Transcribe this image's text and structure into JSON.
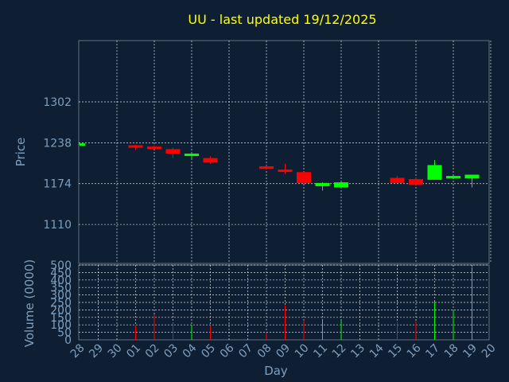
{
  "chart_data": {
    "type": "candlestick",
    "title": "UU - last updated 19/12/2025",
    "price_panel": {
      "ylabel": "Price",
      "yticks": [
        1110,
        1174,
        1238,
        1302
      ],
      "ylim": [
        1049,
        1398
      ]
    },
    "volume_panel": {
      "ylabel": "Volume (0000)",
      "yticks": [
        0,
        50,
        100,
        150,
        200,
        250,
        300,
        350,
        400,
        450,
        500
      ],
      "ylim": [
        0,
        500
      ]
    },
    "xlabel": "Day",
    "x_labels": [
      "28",
      "29",
      "30",
      "01",
      "02",
      "03",
      "04",
      "05",
      "06",
      "07",
      "08",
      "09",
      "10",
      "11",
      "12",
      "13",
      "14",
      "15",
      "16",
      "17",
      "18",
      "19",
      "20"
    ],
    "candles": [
      {
        "day": "28",
        "open": 1236,
        "high": 1237,
        "low": 1235,
        "close": 1237,
        "volume": 0
      },
      {
        "day": "01",
        "open": 1234,
        "high": 1235,
        "low": 1227,
        "close": 1232,
        "volume": 95
      },
      {
        "day": "02",
        "open": 1232,
        "high": 1234,
        "low": 1229,
        "close": 1229,
        "volume": 170
      },
      {
        "day": "03",
        "open": 1228,
        "high": 1230,
        "low": 1214,
        "close": 1221,
        "volume": 115
      },
      {
        "day": "04",
        "open": 1218,
        "high": 1222,
        "low": 1213,
        "close": 1221,
        "volume": 100
      },
      {
        "day": "05",
        "open": 1214,
        "high": 1217,
        "low": 1205,
        "close": 1207,
        "volume": 95
      },
      {
        "day": "08",
        "open": 1201,
        "high": 1202,
        "low": 1196,
        "close": 1197,
        "volume": 50
      },
      {
        "day": "09",
        "open": 1196,
        "high": 1205,
        "low": 1189,
        "close": 1195,
        "volume": 230
      },
      {
        "day": "10",
        "open": 1192,
        "high": 1192,
        "low": 1174,
        "close": 1175,
        "volume": 130
      },
      {
        "day": "11",
        "open": 1170,
        "high": 1176,
        "low": 1163,
        "close": 1175,
        "volume": 140
      },
      {
        "day": "12",
        "open": 1168,
        "high": 1177,
        "low": 1168,
        "close": 1176,
        "volume": 130
      },
      {
        "day": "15",
        "open": 1183,
        "high": 1186,
        "low": 1175,
        "close": 1175,
        "volume": 120
      },
      {
        "day": "16",
        "open": 1181,
        "high": 1183,
        "low": 1172,
        "close": 1172,
        "volume": 125
      },
      {
        "day": "17",
        "open": 1180,
        "high": 1211,
        "low": 1180,
        "close": 1203,
        "volume": 255
      },
      {
        "day": "18",
        "open": 1182,
        "high": 1187,
        "low": 1182,
        "close": 1186,
        "volume": 200
      },
      {
        "day": "19",
        "open": 1182,
        "high": 1188,
        "low": 1168,
        "close": 1188,
        "volume": 485
      }
    ],
    "colors": {
      "background": "#0f1f33",
      "up": "#00ff00",
      "down": "#ff0000",
      "title": "#ffff00",
      "axis_text": "#7f9fbf",
      "grid": "#ffffff"
    },
    "grid": true
  }
}
